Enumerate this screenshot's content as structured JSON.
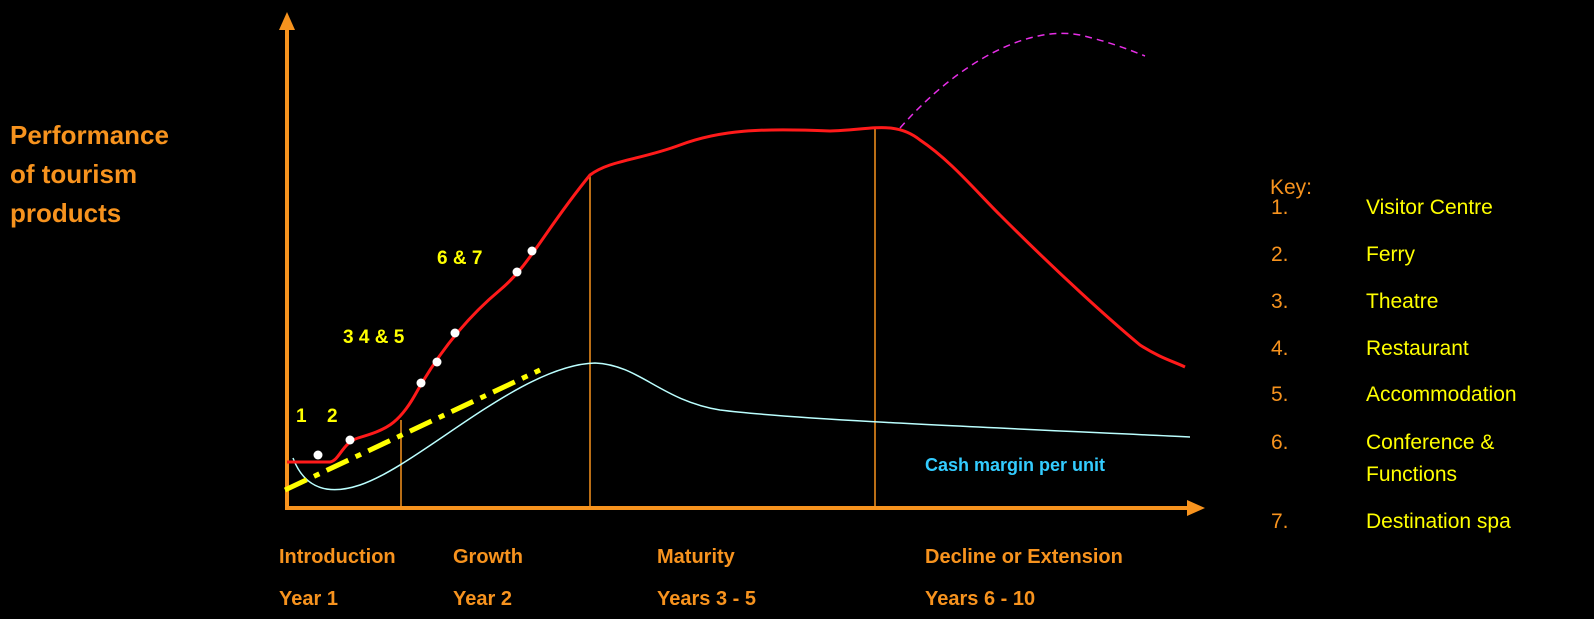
{
  "diagram": {
    "y_axis_label": [
      "Performance",
      "of tourism",
      "products"
    ],
    "point_labels": [
      "1",
      "2",
      "3 4 & 5",
      "6 & 7"
    ],
    "curve_label": "Cash margin per unit",
    "stages": [
      {
        "name": "Introduction",
        "years": "Year 1"
      },
      {
        "name": "Growth",
        "years": "Year 2"
      },
      {
        "name": "Maturity",
        "years": "Years 3 - 5"
      },
      {
        "name": "Decline or Extension",
        "years": "Years 6 - 10"
      }
    ],
    "key": {
      "title": "Key:",
      "items": [
        {
          "number": "1.",
          "name": [
            "Visitor Centre"
          ]
        },
        {
          "number": "2.",
          "name": [
            "Ferry"
          ]
        },
        {
          "number": "3.",
          "name": [
            "Theatre"
          ]
        },
        {
          "number": "4.",
          "name": [
            "Restaurant"
          ]
        },
        {
          "number": "5.",
          "name": [
            "Accommodation"
          ]
        },
        {
          "number": "6.",
          "name": [
            "Conference &",
            "Functions"
          ]
        },
        {
          "number": "7.",
          "name": [
            "Destination spa"
          ]
        }
      ]
    }
  }
}
